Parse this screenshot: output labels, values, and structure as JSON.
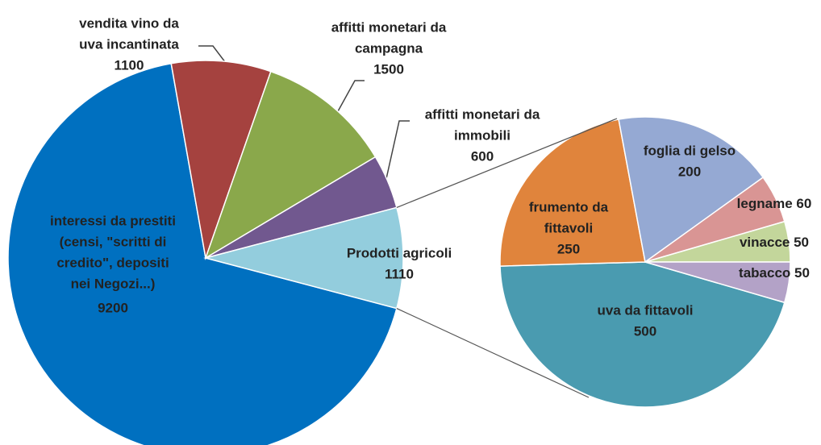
{
  "chart_data": [
    {
      "type": "pie",
      "categories": [
        [
          "interessi da prestiti",
          "(censi, \"scritti di",
          "credito\", depositi",
          "nei Negozi...)"
        ],
        [
          "vendita vino da",
          "uva incantinata"
        ],
        [
          "affitti monetari da",
          "campagna"
        ],
        [
          "affitti monetari da",
          "immobili"
        ],
        [
          "Prodotti agricoli"
        ]
      ],
      "values": [
        9200,
        1100,
        1500,
        600,
        1110
      ],
      "colors": [
        "#0070c0",
        "#a5423f",
        "#8aa84b",
        "#71588f",
        "#93cddd"
      ]
    },
    {
      "type": "pie",
      "categories": [
        [
          "uva da fittavoli"
        ],
        [
          "frumento da",
          "fittavoli"
        ],
        [
          "foglia di gelso"
        ],
        [
          "legname"
        ],
        [
          "vinacce"
        ],
        [
          "tabacco"
        ]
      ],
      "values": [
        500,
        250,
        200,
        60,
        50,
        50
      ],
      "colors": [
        "#4a9bb0",
        "#e0843c",
        "#95a9d3",
        "#d99594",
        "#c3d69b",
        "#b3a2c7"
      ]
    }
  ]
}
